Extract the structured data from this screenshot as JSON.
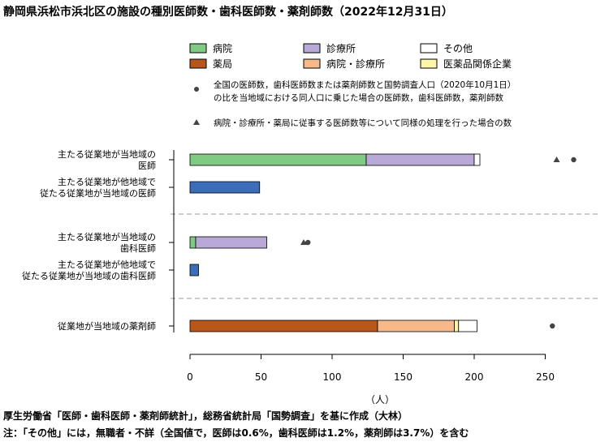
{
  "title": "静岡県浜松市浜北区の施設の種別医師数・歯科医師数・薬剤師数（2022年12月31日）",
  "source_lines": [
    "厚生労働省「医師・歯科医師・薬剤師統計」，総務省統計局「国勢調査」を基に作成（大林）",
    "注：「その他」には，無職者・不詳（全国値で，医師は0.6%，歯科医師は1.2%，薬剤師は3.7%）を含む"
  ],
  "legend_notes": {
    "circle": [
      "全国の医師数，歯科医師数または薬剤師数と国勢調査人口（2020年10月1日）",
      "の比を当地域における同人口に乗じた場合の医師数，歯科医師数，薬剤師数"
    ],
    "triangle": "病院・診療所・薬局に従事する医師数等について同様の処理を行った場合の数"
  },
  "colors": {
    "hospital": "#7fcb83",
    "clinic": "#b9a9d6",
    "other": "#ffffff",
    "pharmacy": "#b9561a",
    "hosp_clinic": "#f7b98a",
    "pharma_company": "#fdf5a8",
    "physician_only": "#3b6db8",
    "marker": "#444444"
  },
  "chart_data": {
    "type": "bar",
    "stacked": true,
    "orientation": "horizontal",
    "xlabel": "（人）",
    "xlim": [
      0,
      280
    ],
    "xticks": [
      0,
      50,
      100,
      150,
      200,
      250
    ],
    "legend": [
      {
        "name": "病院",
        "color_key": "hospital"
      },
      {
        "name": "診療所",
        "color_key": "clinic"
      },
      {
        "name": "その他",
        "color_key": "other"
      },
      {
        "name": "薬局",
        "color_key": "pharmacy"
      },
      {
        "name": "病院・診療所",
        "color_key": "hosp_clinic"
      },
      {
        "name": "医薬品関係企業",
        "color_key": "pharma_company"
      }
    ],
    "rows": [
      {
        "label": [
          "主たる従業地が当地域の",
          "医師"
        ],
        "segments": [
          {
            "name": "病院",
            "value": 124,
            "color_key": "hospital"
          },
          {
            "name": "診療所",
            "value": 76,
            "color_key": "clinic"
          },
          {
            "name": "その他",
            "value": 4,
            "color_key": "other"
          }
        ],
        "triangle": 258,
        "circle": 270
      },
      {
        "label": [
          "主たる従業地が他地域で",
          "従たる従業地が当地域の医師"
        ],
        "segments": [
          {
            "name": "",
            "value": 49,
            "color_key": "physician_only"
          }
        ]
      },
      {
        "label": [
          "主たる従業地が当地域の",
          "歯科医師"
        ],
        "segments": [
          {
            "name": "病院",
            "value": 4,
            "color_key": "hospital"
          },
          {
            "name": "診療所",
            "value": 50,
            "color_key": "clinic"
          }
        ],
        "triangle": 80,
        "circle": 83
      },
      {
        "label": [
          "主たる従業地が他地域で",
          "従たる従業地が当地域の歯科医師"
        ],
        "segments": [
          {
            "name": "",
            "value": 6,
            "color_key": "physician_only"
          }
        ]
      },
      {
        "label": [
          "従業地が当地域の薬剤師"
        ],
        "segments": [
          {
            "name": "薬局",
            "value": 132,
            "color_key": "pharmacy"
          },
          {
            "name": "病院・診療所",
            "value": 54,
            "color_key": "hosp_clinic"
          },
          {
            "name": "医薬品関係企業",
            "value": 3,
            "color_key": "pharma_company"
          },
          {
            "name": "その他",
            "value": 13,
            "color_key": "other"
          }
        ],
        "circle": 255
      }
    ]
  }
}
